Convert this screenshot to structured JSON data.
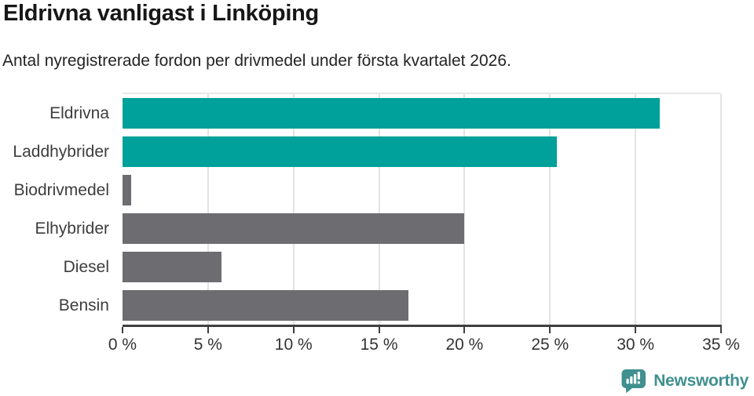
{
  "header": {
    "title": "Eldrivna vanligast i Linköping",
    "subtitle": "Antal nyregistrerade fordon per drivmedel under första kvartalet 2026."
  },
  "chart_data": {
    "type": "bar",
    "orientation": "horizontal",
    "categories": [
      "Eldrivna",
      "Laddhybrider",
      "Biodrivmedel",
      "Elhybrider",
      "Diesel",
      "Bensin"
    ],
    "values": [
      31.4,
      25.4,
      0.5,
      20.0,
      5.8,
      16.7
    ],
    "bar_colors": [
      "#00a19a",
      "#00a19a",
      "#6c6c71",
      "#6c6c71",
      "#6c6c71",
      "#6c6c71"
    ],
    "title": "Eldrivna vanligast i Linköping",
    "subtitle": "Antal nyregistrerade fordon per drivmedel under första kvartalet 2026.",
    "xlabel": "",
    "ylabel": "",
    "xlim": [
      0,
      35
    ],
    "x_tick_values": [
      0,
      5,
      10,
      15,
      20,
      25,
      30,
      35
    ],
    "x_tick_labels": [
      "0 %",
      "5 %",
      "10 %",
      "15 %",
      "20 %",
      "25 %",
      "30 %",
      "35 %"
    ],
    "grid": true,
    "legend": false
  },
  "branding": {
    "logo_text": "Newsworthy",
    "logo_icon": "newsworthy-speech-bubble-bar-chart-icon"
  },
  "colors": {
    "highlight_teal": "#00a19a",
    "neutral_gray": "#6c6c71",
    "axis": "#3f3f3f",
    "gridline": "#e3e3e3",
    "brand_teal": "#3f908f"
  }
}
